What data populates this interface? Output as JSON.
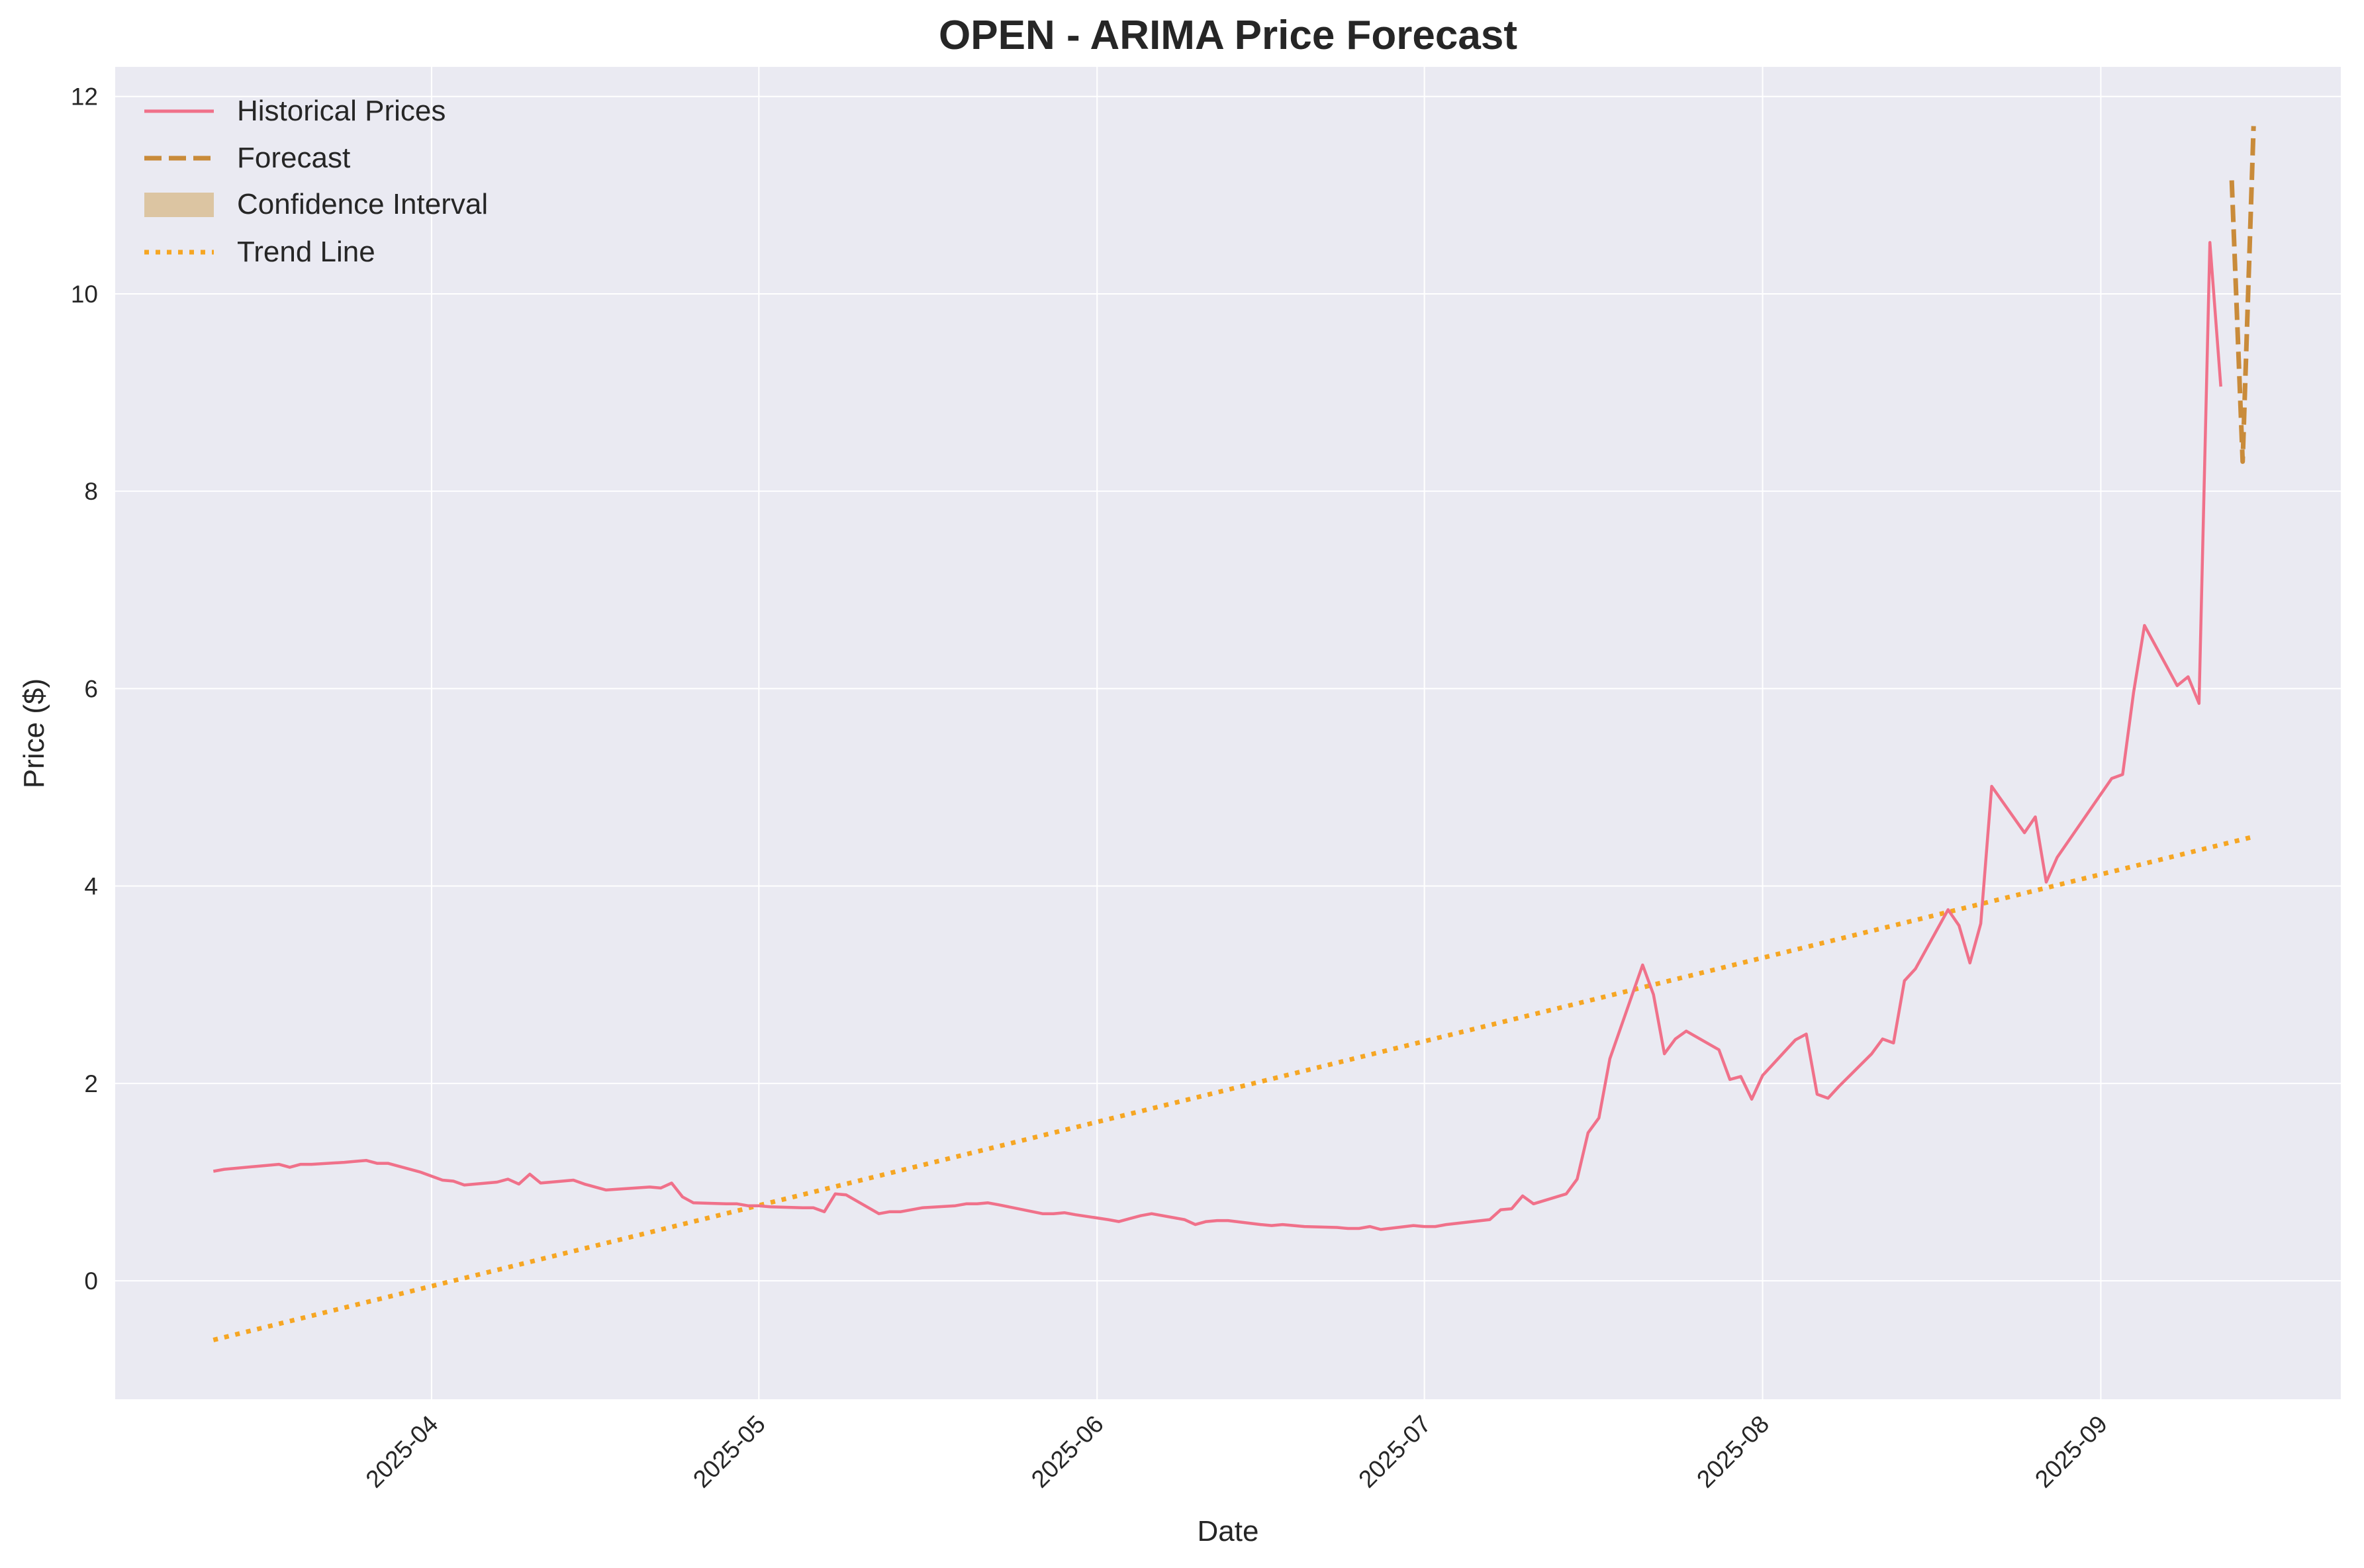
{
  "chart_data": {
    "type": "line",
    "title": "OPEN - ARIMA Price Forecast",
    "xlabel": "Date",
    "ylabel": "Price ($)",
    "xlim": [
      "2025-03-03",
      "2025-09-23"
    ],
    "ylim": [
      -1.2,
      12.3
    ],
    "grid": true,
    "legend_position": "top-left",
    "x_ticks": [
      "2025-04",
      "2025-05",
      "2025-06",
      "2025-07",
      "2025-08",
      "2025-09"
    ],
    "y_ticks": [
      "0",
      "2",
      "4",
      "6",
      "8",
      "10",
      "12"
    ],
    "series": [
      {
        "name": "Historical Prices",
        "style": "solid",
        "color": "#f0718a",
        "points": [
          [
            "2025-03-12",
            1.11
          ],
          [
            "2025-03-13",
            1.13
          ],
          [
            "2025-03-14",
            1.14
          ],
          [
            "2025-03-17",
            1.17
          ],
          [
            "2025-03-18",
            1.18
          ],
          [
            "2025-03-19",
            1.15
          ],
          [
            "2025-03-20",
            1.18
          ],
          [
            "2025-03-21",
            1.18
          ],
          [
            "2025-03-24",
            1.2
          ],
          [
            "2025-03-25",
            1.21
          ],
          [
            "2025-03-26",
            1.22
          ],
          [
            "2025-03-27",
            1.19
          ],
          [
            "2025-03-28",
            1.19
          ],
          [
            "2025-03-31",
            1.1
          ],
          [
            "2025-04-01",
            1.06
          ],
          [
            "2025-04-02",
            1.02
          ],
          [
            "2025-04-03",
            1.01
          ],
          [
            "2025-04-04",
            0.97
          ],
          [
            "2025-04-07",
            1.0
          ],
          [
            "2025-04-08",
            1.03
          ],
          [
            "2025-04-09",
            0.98
          ],
          [
            "2025-04-10",
            1.08
          ],
          [
            "2025-04-11",
            0.99
          ],
          [
            "2025-04-14",
            1.02
          ],
          [
            "2025-04-15",
            0.98
          ],
          [
            "2025-04-16",
            0.95
          ],
          [
            "2025-04-17",
            0.92
          ],
          [
            "2025-04-21",
            0.95
          ],
          [
            "2025-04-22",
            0.94
          ],
          [
            "2025-04-23",
            0.99
          ],
          [
            "2025-04-24",
            0.85
          ],
          [
            "2025-04-25",
            0.79
          ],
          [
            "2025-04-28",
            0.78
          ],
          [
            "2025-04-29",
            0.78
          ],
          [
            "2025-04-30",
            0.76
          ],
          [
            "2025-05-01",
            0.76
          ],
          [
            "2025-05-02",
            0.75
          ],
          [
            "2025-05-05",
            0.74
          ],
          [
            "2025-05-06",
            0.74
          ],
          [
            "2025-05-07",
            0.7
          ],
          [
            "2025-05-08",
            0.88
          ],
          [
            "2025-05-09",
            0.87
          ],
          [
            "2025-05-12",
            0.68
          ],
          [
            "2025-05-13",
            0.7
          ],
          [
            "2025-05-14",
            0.7
          ],
          [
            "2025-05-15",
            0.72
          ],
          [
            "2025-05-16",
            0.74
          ],
          [
            "2025-05-19",
            0.76
          ],
          [
            "2025-05-20",
            0.78
          ],
          [
            "2025-05-21",
            0.78
          ],
          [
            "2025-05-22",
            0.79
          ],
          [
            "2025-05-23",
            0.77
          ],
          [
            "2025-05-27",
            0.68
          ],
          [
            "2025-05-28",
            0.68
          ],
          [
            "2025-05-29",
            0.69
          ],
          [
            "2025-05-30",
            0.67
          ],
          [
            "2025-06-02",
            0.62
          ],
          [
            "2025-06-03",
            0.6
          ],
          [
            "2025-06-04",
            0.63
          ],
          [
            "2025-06-05",
            0.66
          ],
          [
            "2025-06-06",
            0.68
          ],
          [
            "2025-06-09",
            0.62
          ],
          [
            "2025-06-10",
            0.57
          ],
          [
            "2025-06-11",
            0.6
          ],
          [
            "2025-06-12",
            0.61
          ],
          [
            "2025-06-13",
            0.61
          ],
          [
            "2025-06-16",
            0.57
          ],
          [
            "2025-06-17",
            0.56
          ],
          [
            "2025-06-18",
            0.57
          ],
          [
            "2025-06-20",
            0.55
          ],
          [
            "2025-06-23",
            0.54
          ],
          [
            "2025-06-24",
            0.53
          ],
          [
            "2025-06-25",
            0.53
          ],
          [
            "2025-06-26",
            0.55
          ],
          [
            "2025-06-27",
            0.52
          ],
          [
            "2025-06-30",
            0.56
          ],
          [
            "2025-07-01",
            0.55
          ],
          [
            "2025-07-02",
            0.55
          ],
          [
            "2025-07-03",
            0.57
          ],
          [
            "2025-07-07",
            0.62
          ],
          [
            "2025-07-08",
            0.72
          ],
          [
            "2025-07-09",
            0.73
          ],
          [
            "2025-07-10",
            0.86
          ],
          [
            "2025-07-11",
            0.78
          ],
          [
            "2025-07-14",
            0.88
          ],
          [
            "2025-07-15",
            1.03
          ],
          [
            "2025-07-16",
            1.5
          ],
          [
            "2025-07-17",
            1.65
          ],
          [
            "2025-07-18",
            2.25
          ],
          [
            "2025-07-21",
            3.2
          ],
          [
            "2025-07-22",
            2.9
          ],
          [
            "2025-07-23",
            2.3
          ],
          [
            "2025-07-24",
            2.45
          ],
          [
            "2025-07-25",
            2.53
          ],
          [
            "2025-07-28",
            2.34
          ],
          [
            "2025-07-29",
            2.04
          ],
          [
            "2025-07-30",
            2.07
          ],
          [
            "2025-07-31",
            1.84
          ],
          [
            "2025-08-01",
            2.08
          ],
          [
            "2025-08-04",
            2.44
          ],
          [
            "2025-08-05",
            2.5
          ],
          [
            "2025-08-06",
            1.89
          ],
          [
            "2025-08-07",
            1.85
          ],
          [
            "2025-08-08",
            1.97
          ],
          [
            "2025-08-11",
            2.3
          ],
          [
            "2025-08-12",
            2.45
          ],
          [
            "2025-08-13",
            2.41
          ],
          [
            "2025-08-14",
            3.04
          ],
          [
            "2025-08-15",
            3.16
          ],
          [
            "2025-08-18",
            3.76
          ],
          [
            "2025-08-19",
            3.6
          ],
          [
            "2025-08-20",
            3.22
          ],
          [
            "2025-08-21",
            3.62
          ],
          [
            "2025-08-22",
            5.01
          ],
          [
            "2025-08-25",
            4.54
          ],
          [
            "2025-08-26",
            4.7
          ],
          [
            "2025-08-27",
            4.04
          ],
          [
            "2025-08-28",
            4.29
          ],
          [
            "2025-08-29",
            4.45
          ],
          [
            "2025-09-02",
            5.09
          ],
          [
            "2025-09-03",
            5.13
          ],
          [
            "2025-09-04",
            5.96
          ],
          [
            "2025-09-05",
            6.64
          ],
          [
            "2025-09-08",
            6.03
          ],
          [
            "2025-09-09",
            6.12
          ],
          [
            "2025-09-10",
            5.85
          ],
          [
            "2025-09-11",
            10.52
          ],
          [
            "2025-09-12",
            9.06
          ]
        ]
      },
      {
        "name": "Forecast",
        "style": "dashed",
        "color": "#c98b3a",
        "points": [
          [
            "2025-09-13",
            11.15
          ],
          [
            "2025-09-14",
            8.3
          ],
          [
            "2025-09-15",
            11.7
          ]
        ]
      },
      {
        "name": "Confidence Interval",
        "style": "band",
        "color": "#dcc5a2",
        "points": []
      },
      {
        "name": "Trend Line",
        "style": "dotted",
        "color": "#f6a623",
        "points": [
          [
            "2025-03-12",
            -0.6
          ],
          [
            "2025-09-15",
            4.5
          ]
        ]
      }
    ]
  }
}
